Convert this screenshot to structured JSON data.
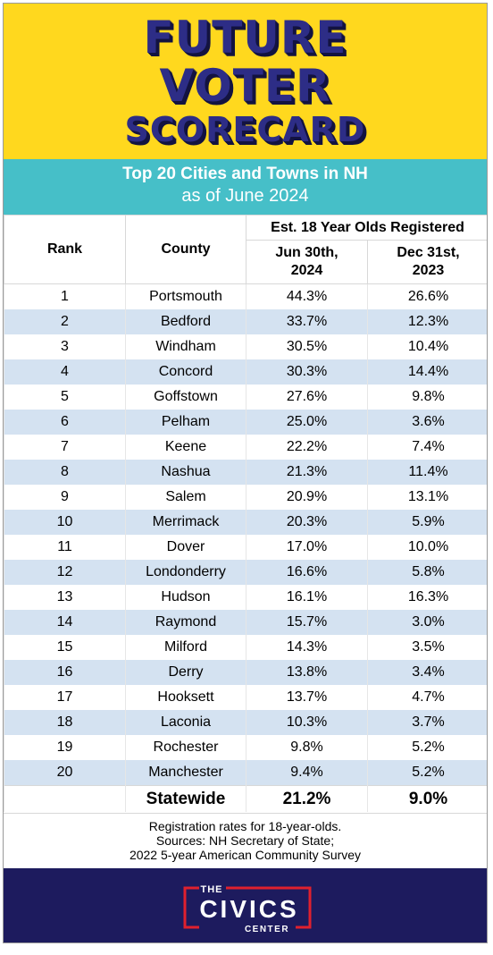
{
  "banner": {
    "line1": "FUTURE",
    "line2": "VOTER",
    "line3": "SCORECARD"
  },
  "subhead": {
    "title": "Top 20 Cities and Towns in NH",
    "subtitle": "as of June 2024"
  },
  "table": {
    "headers": {
      "rank": "Rank",
      "county": "County",
      "group": "Est. 18 Year Olds Registered",
      "col_jun": "Jun 30th, 2024",
      "col_dec": "Dec 31st, 2023"
    },
    "rows": [
      {
        "rank": "1",
        "name": "Portsmouth",
        "jun": "44.3%",
        "dec": "26.6%"
      },
      {
        "rank": "2",
        "name": "Bedford",
        "jun": "33.7%",
        "dec": "12.3%"
      },
      {
        "rank": "3",
        "name": "Windham",
        "jun": "30.5%",
        "dec": "10.4%"
      },
      {
        "rank": "4",
        "name": "Concord",
        "jun": "30.3%",
        "dec": "14.4%"
      },
      {
        "rank": "5",
        "name": "Goffstown",
        "jun": "27.6%",
        "dec": "9.8%"
      },
      {
        "rank": "6",
        "name": "Pelham",
        "jun": "25.0%",
        "dec": "3.6%"
      },
      {
        "rank": "7",
        "name": "Keene",
        "jun": "22.2%",
        "dec": "7.4%"
      },
      {
        "rank": "8",
        "name": "Nashua",
        "jun": "21.3%",
        "dec": "11.4%"
      },
      {
        "rank": "9",
        "name": "Salem",
        "jun": "20.9%",
        "dec": "13.1%"
      },
      {
        "rank": "10",
        "name": "Merrimack",
        "jun": "20.3%",
        "dec": "5.9%"
      },
      {
        "rank": "11",
        "name": "Dover",
        "jun": "17.0%",
        "dec": "10.0%"
      },
      {
        "rank": "12",
        "name": "Londonderry",
        "jun": "16.6%",
        "dec": "5.8%"
      },
      {
        "rank": "13",
        "name": "Hudson",
        "jun": "16.1%",
        "dec": "16.3%"
      },
      {
        "rank": "14",
        "name": "Raymond",
        "jun": "15.7%",
        "dec": "3.0%"
      },
      {
        "rank": "15",
        "name": "Milford",
        "jun": "14.3%",
        "dec": "3.5%"
      },
      {
        "rank": "16",
        "name": "Derry",
        "jun": "13.8%",
        "dec": "3.4%"
      },
      {
        "rank": "17",
        "name": "Hooksett",
        "jun": "13.7%",
        "dec": "4.7%"
      },
      {
        "rank": "18",
        "name": "Laconia",
        "jun": "10.3%",
        "dec": "3.7%"
      },
      {
        "rank": "19",
        "name": "Rochester",
        "jun": "9.8%",
        "dec": "5.2%"
      },
      {
        "rank": "20",
        "name": "Manchester",
        "jun": "9.4%",
        "dec": "5.2%"
      }
    ],
    "statewide": {
      "label": "Statewide",
      "jun": "21.2%",
      "dec": "9.0%"
    }
  },
  "notes": {
    "line1": "Registration rates for 18-year-olds.",
    "line2": "Sources: NH Secretary of State;",
    "line3": "2022 5-year American Community Survey"
  },
  "logo": {
    "top": "THE",
    "middle": "CIVICS",
    "bottom": "CENTER"
  },
  "colors": {
    "banner_yellow": "#ffd81e",
    "title_navy": "#2d2d86",
    "subhead_teal": "#46bfc8",
    "row_alt_blue": "#d4e2f1",
    "footer_navy": "#1d1b5e",
    "logo_red": "#e0202e"
  }
}
